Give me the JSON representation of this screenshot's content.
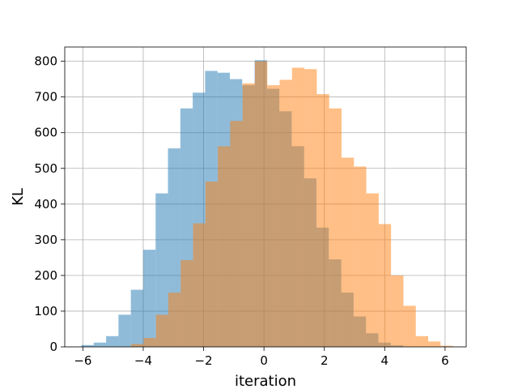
{
  "chart_data": {
    "type": "bar",
    "xlabel": "iteration",
    "ylabel": "KL",
    "xlim": [
      -6.6,
      6.7
    ],
    "ylim": [
      0,
      840
    ],
    "xticks": [
      -6,
      -4,
      -2,
      0,
      2,
      4,
      6
    ],
    "xtick_labels": [
      "−6",
      "−4",
      "−2",
      "0",
      "2",
      "4",
      "6"
    ],
    "yticks": [
      0,
      100,
      200,
      300,
      400,
      500,
      600,
      700,
      800
    ],
    "ytick_labels": [
      "0",
      "100",
      "200",
      "300",
      "400",
      "500",
      "600",
      "700",
      "800"
    ],
    "grid": true,
    "bin_width": 0.41,
    "series": [
      {
        "color": "#1f77b4",
        "opacity": 0.5,
        "bin_starts": [
          -6.05,
          -5.64,
          -5.23,
          -4.82,
          -4.41,
          -4.0,
          -3.59,
          -3.18,
          -2.77,
          -2.36,
          -1.95,
          -1.54,
          -1.13,
          -0.72,
          -0.31,
          0.1,
          0.51,
          0.92,
          1.33,
          1.74,
          2.15,
          2.56,
          2.97,
          3.38,
          3.79,
          4.2
        ],
        "values": [
          5,
          12,
          30,
          90,
          160,
          272,
          430,
          556,
          668,
          712,
          773,
          768,
          750,
          733,
          803,
          723,
          660,
          562,
          472,
          334,
          245,
          152,
          85,
          38,
          12,
          4
        ]
      },
      {
        "color": "#ff7f0e",
        "opacity": 0.5,
        "bin_starts": [
          -4.4,
          -3.99,
          -3.58,
          -3.17,
          -2.76,
          -2.35,
          -1.94,
          -1.53,
          -1.12,
          -0.71,
          -0.3,
          0.11,
          0.52,
          0.93,
          1.34,
          1.75,
          2.16,
          2.57,
          2.98,
          3.39,
          3.8,
          4.21,
          4.62,
          5.03,
          5.44,
          5.85
        ],
        "values": [
          8,
          25,
          90,
          152,
          243,
          346,
          463,
          562,
          633,
          738,
          800,
          733,
          748,
          782,
          778,
          708,
          668,
          530,
          505,
          430,
          344,
          200,
          115,
          30,
          15,
          3
        ]
      }
    ]
  }
}
